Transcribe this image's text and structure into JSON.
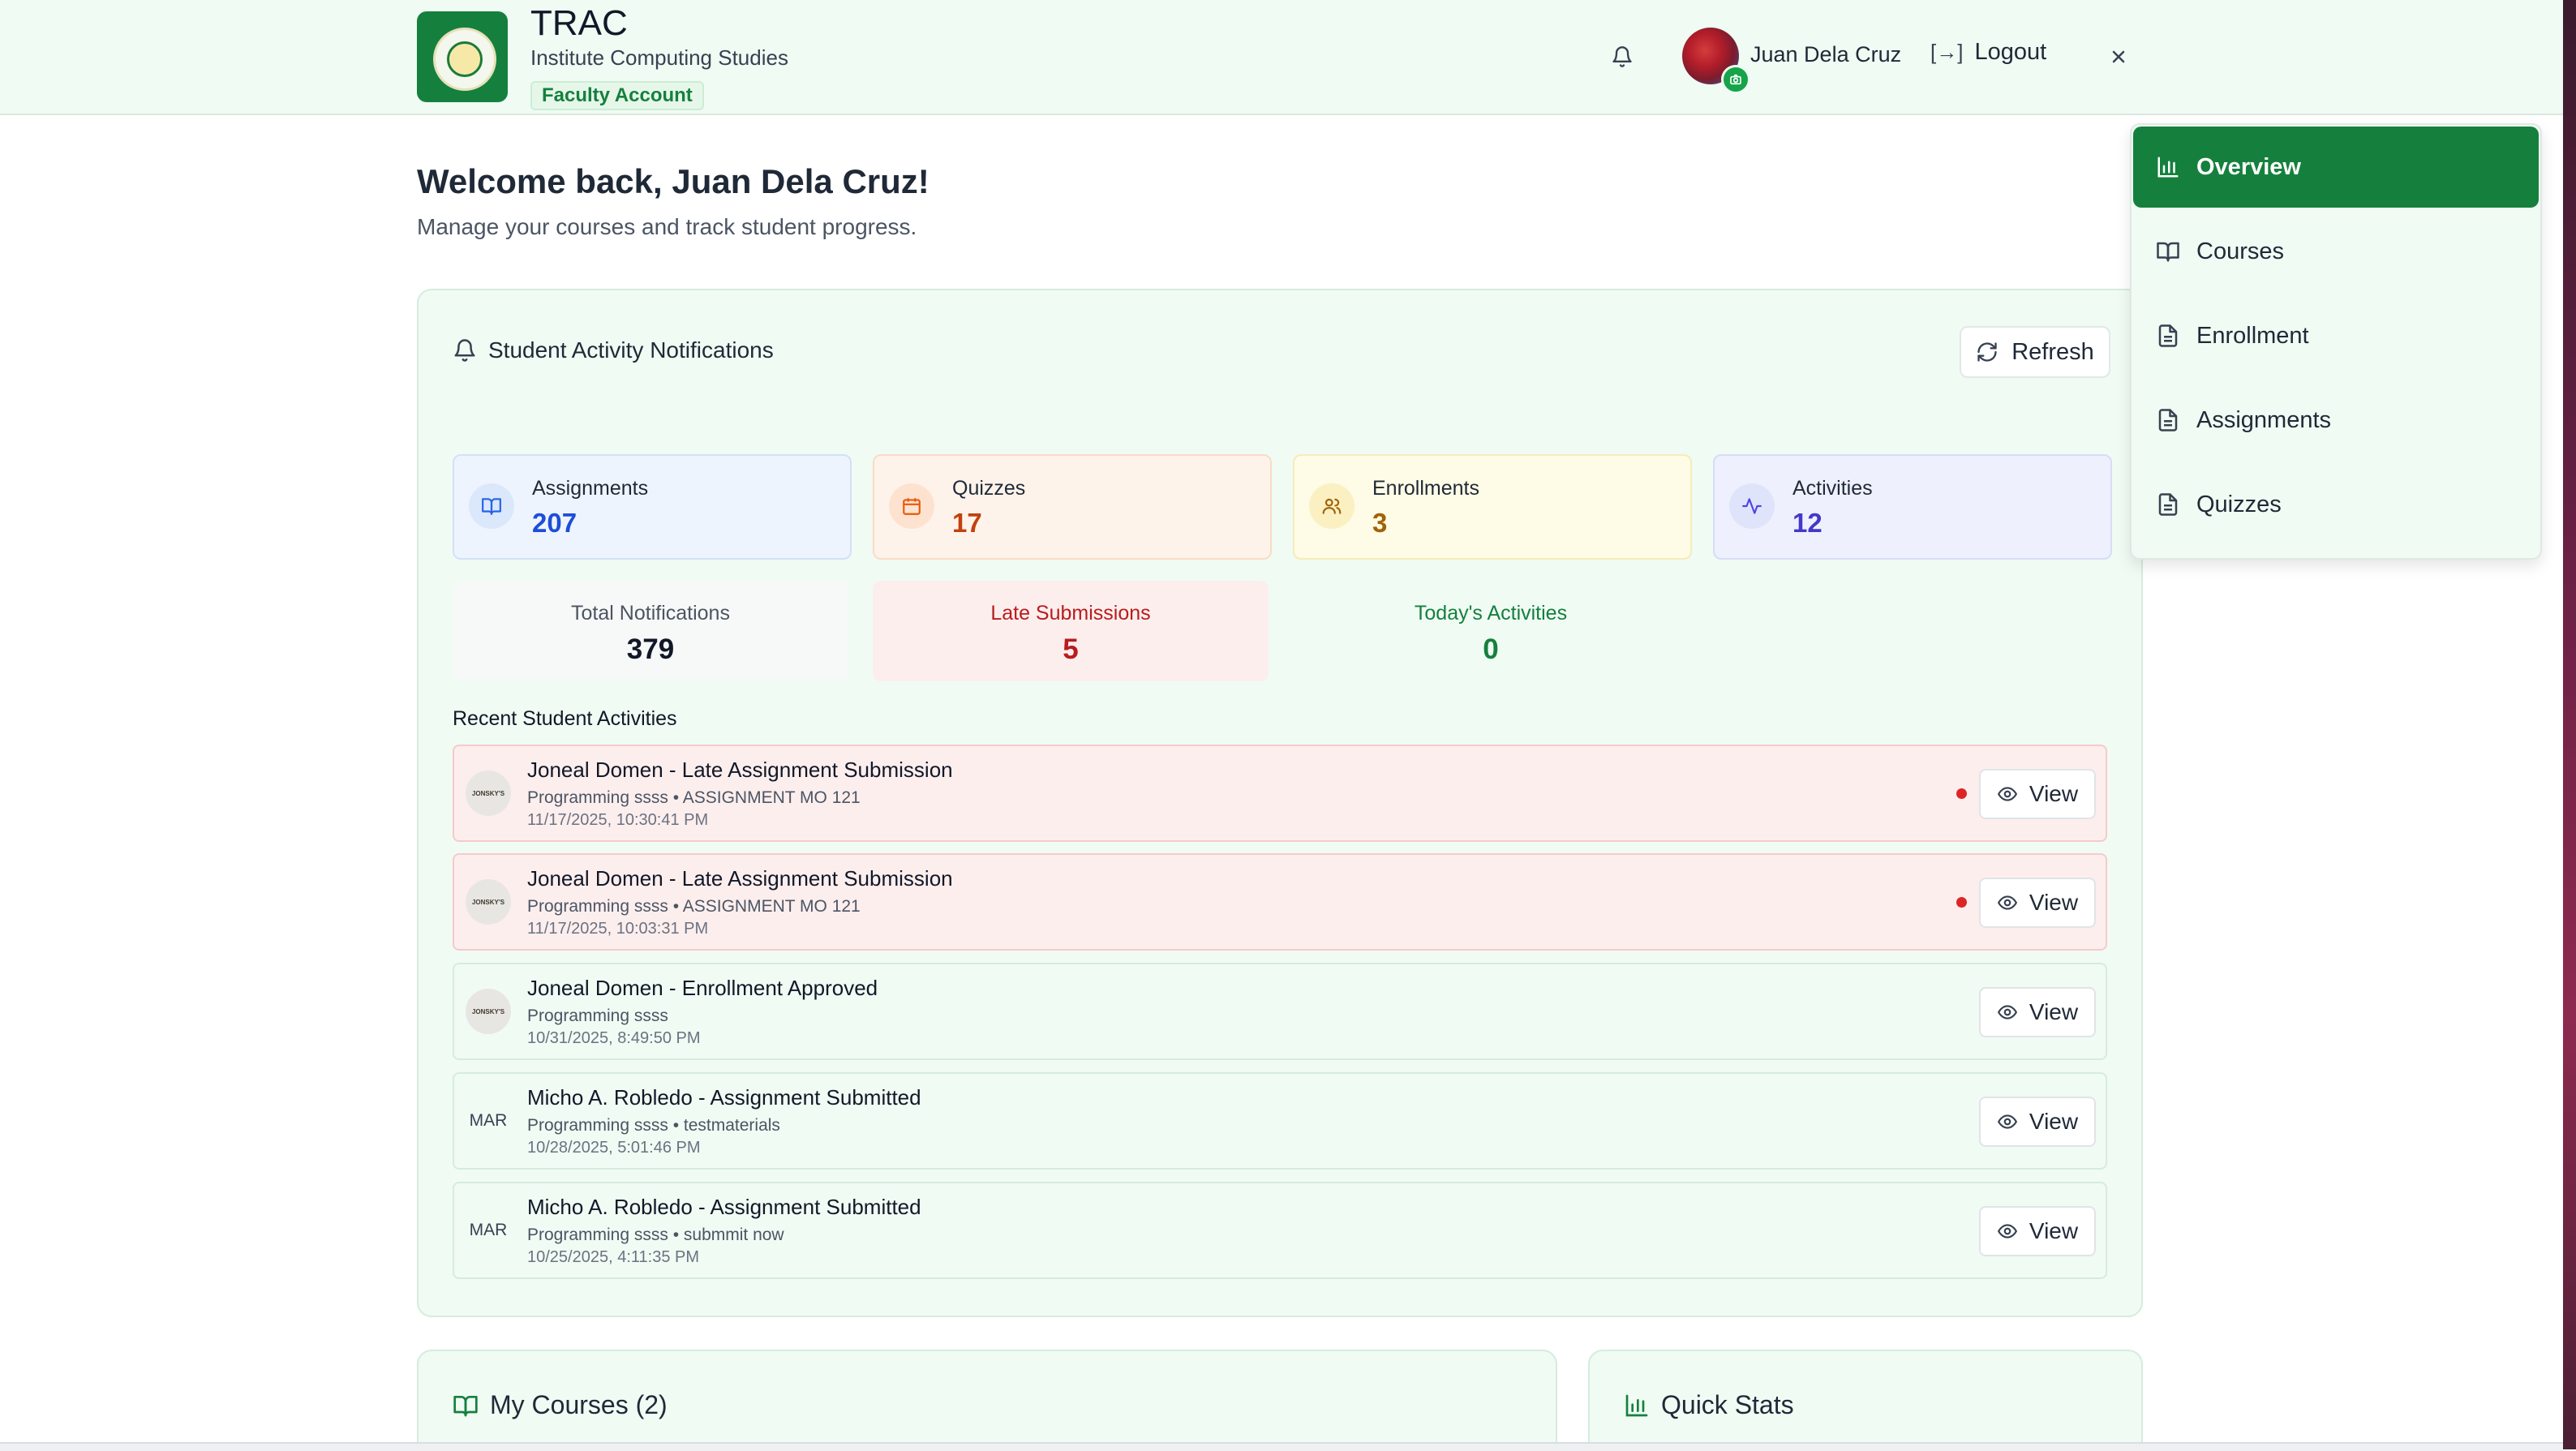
{
  "header": {
    "app_name": "TRAC",
    "institute": "Institute Computing Studies",
    "account_badge": "Faculty Account",
    "user_name": "Juan Dela Cruz",
    "logout_label": "Logout",
    "logout_icon": "[→]"
  },
  "welcome": {
    "title": "Welcome back, Juan Dela Cruz!",
    "subtitle": "Manage your courses and track student progress."
  },
  "notifications": {
    "title": "Student Activity Notifications",
    "refresh_label": "Refresh",
    "stats": [
      {
        "label": "Assignments",
        "value": "207",
        "icon": "book-icon",
        "color": "#1d4ed8"
      },
      {
        "label": "Quizzes",
        "value": "17",
        "icon": "calendar-icon",
        "color": "#c2410c"
      },
      {
        "label": "Enrollments",
        "value": "3",
        "icon": "users-icon",
        "color": "#a16207"
      },
      {
        "label": "Activities",
        "value": "12",
        "icon": "activity-icon",
        "color": "#4338ca"
      }
    ],
    "summary": [
      {
        "label": "Total Notifications",
        "value": "379"
      },
      {
        "label": "Late Submissions",
        "value": "5"
      },
      {
        "label": "Today's Activities",
        "value": "0"
      }
    ],
    "recent_label": "Recent Student Activities",
    "view_label": "View",
    "activities": [
      {
        "avatar": "JONSKY'S",
        "title": "Joneal Domen - Late Assignment Submission",
        "subtitle": "Programming ssss • ASSIGNMENT MO 121",
        "date": "11/17/2025, 10:30:41 PM",
        "unread": true,
        "late": true
      },
      {
        "avatar": "JONSKY'S",
        "title": "Joneal Domen - Late Assignment Submission",
        "subtitle": "Programming ssss • ASSIGNMENT MO 121",
        "date": "11/17/2025, 10:03:31 PM",
        "unread": true,
        "late": true
      },
      {
        "avatar": "JONSKY'S",
        "title": "Joneal Domen - Enrollment Approved",
        "subtitle": "Programming ssss",
        "date": "10/31/2025, 8:49:50 PM",
        "unread": false,
        "late": false
      },
      {
        "avatar": "MAR",
        "title": "Micho A. Robledo - Assignment Submitted",
        "subtitle": "Programming ssss • testmaterials",
        "date": "10/28/2025, 5:01:46 PM",
        "unread": false,
        "late": false
      },
      {
        "avatar": "MAR",
        "title": "Micho A. Robledo - Assignment Submitted",
        "subtitle": "Programming ssss • submmit now",
        "date": "10/25/2025, 4:11:35 PM",
        "unread": false,
        "late": false
      }
    ]
  },
  "cards": {
    "my_courses": "My Courses (2)",
    "quick_stats": "Quick Stats"
  },
  "menu": {
    "items": [
      {
        "label": "Overview",
        "icon": "bar-chart-icon",
        "active": true
      },
      {
        "label": "Courses",
        "icon": "book-icon",
        "active": false
      },
      {
        "label": "Enrollment",
        "icon": "file-icon",
        "active": false
      },
      {
        "label": "Assignments",
        "icon": "file-icon",
        "active": false
      },
      {
        "label": "Quizzes",
        "icon": "file-icon",
        "active": false
      }
    ]
  },
  "colors": {
    "brand_green": "#15803d",
    "late_bg": "#fdeeee",
    "late_border": "#f6caca",
    "late_text": "#b91c1c",
    "today_text": "#15803d"
  }
}
